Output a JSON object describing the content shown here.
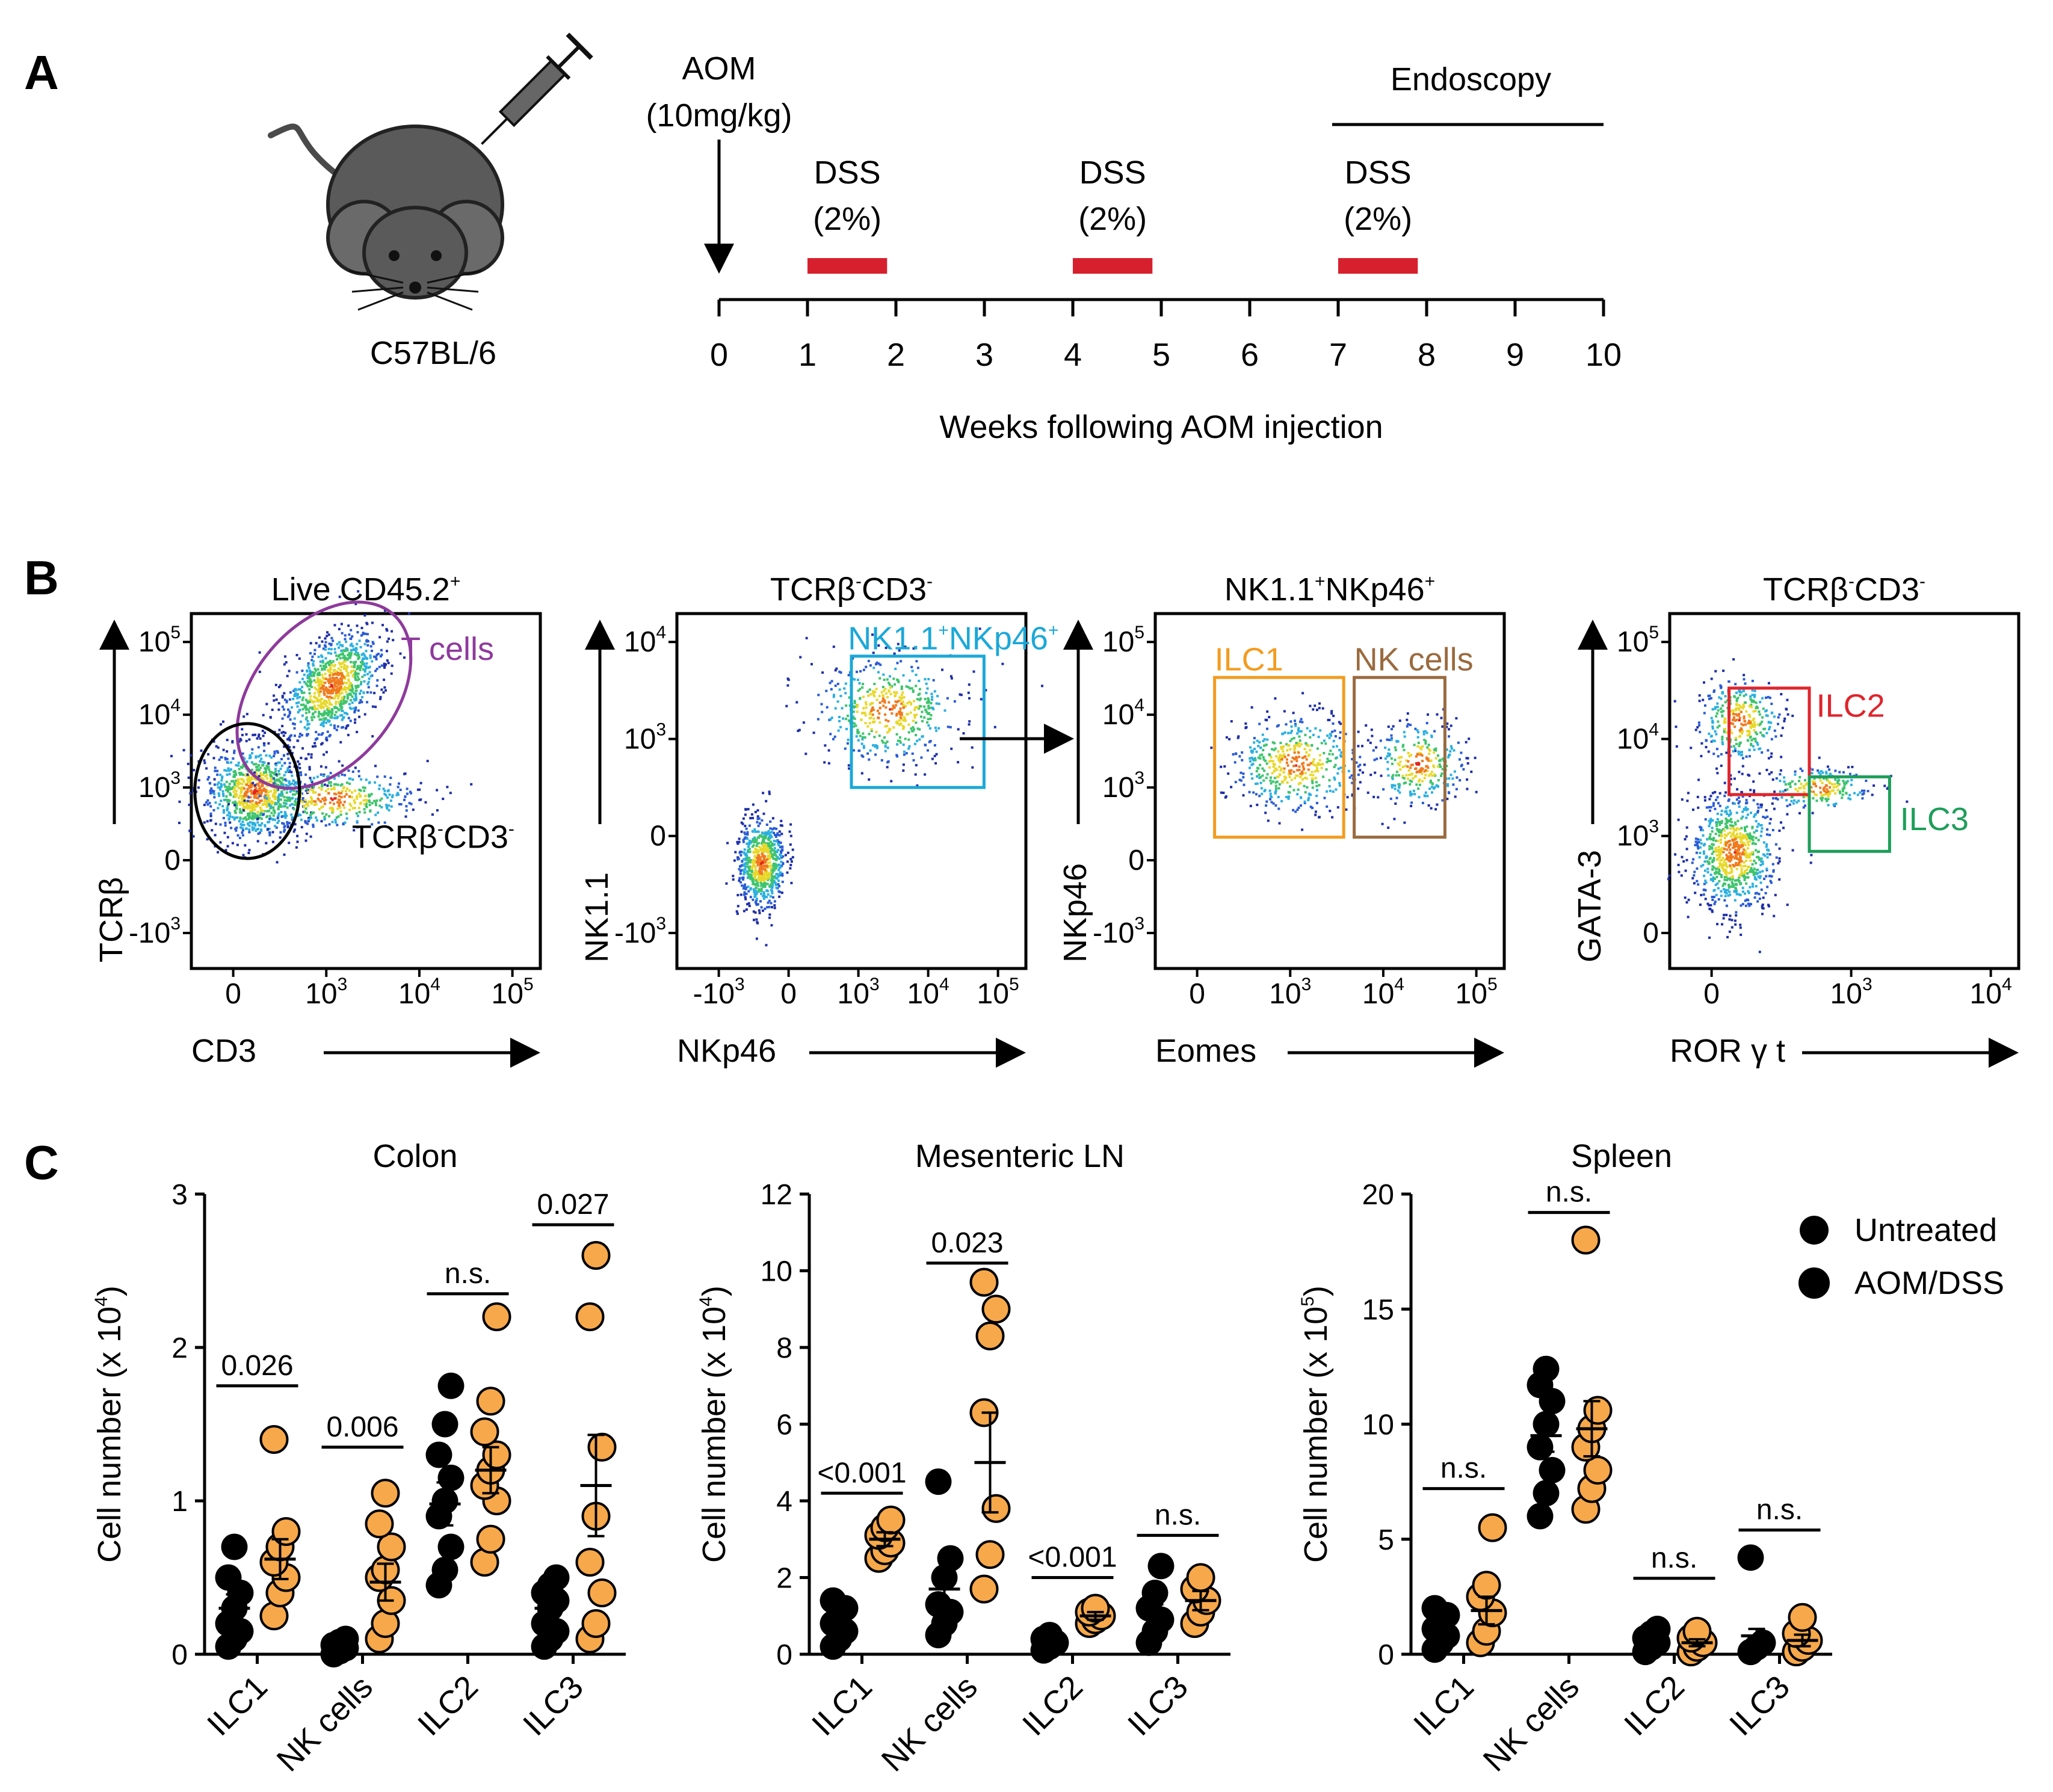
{
  "panel_labels": {
    "a": "A",
    "b": "B",
    "c": "C"
  },
  "colors": {
    "untreated": "#000000",
    "aom_dss": "#F7A84A",
    "dss_bar": "#D7202E",
    "tcells_gate": "#8E3A9C",
    "nk_gate": "#1BA8D8",
    "ilc1_gate": "#F39C1F",
    "nkcells_gate": "#9A6A3E",
    "ilc2_gate": "#E0242C",
    "ilc3_gate": "#1E9E5A"
  },
  "panel_a": {
    "mouse_strain": "C57BL/6",
    "aom_label": "AOM",
    "aom_dose": "(10mg/kg)",
    "endoscopy_label": "Endoscopy",
    "dss_label": "DSS",
    "dss_conc": "(2%)",
    "dss_periods": [
      [
        1,
        1.9
      ],
      [
        4,
        4.9
      ],
      [
        7,
        7.9
      ]
    ],
    "endoscopy_range": [
      7,
      10
    ],
    "aom_week": 0,
    "timeline_ticks": [
      "0",
      "1",
      "2",
      "3",
      "4",
      "5",
      "6",
      "7",
      "8",
      "9",
      "10"
    ],
    "timeline_axis_label": "Weeks following AOM injection"
  },
  "panel_b": {
    "plots": [
      {
        "title": "Live CD45.2",
        "title_sup": "+",
        "ylabel": "TCRβ",
        "xlabel": "CD3",
        "xticks": [
          "0",
          "10",
          "10",
          "10"
        ],
        "xtick_sups": [
          "",
          "3",
          "4",
          "5"
        ],
        "yticks": [
          "10",
          "10",
          "10",
          "0",
          "-10"
        ],
        "ytick_sups": [
          "5",
          "4",
          "3",
          "",
          "3"
        ],
        "gates": [
          {
            "label": "T cells",
            "color_key": "tcells_gate"
          },
          {
            "label": "TCRβ",
            "sup1": "-",
            "label2": "CD3",
            "sup2": "-",
            "color_key": "untreated"
          }
        ]
      },
      {
        "title": "TCRβ",
        "title_sup": "-",
        "title2": "CD3",
        "title2_sup": "-",
        "ylabel": "NK1.1",
        "xlabel": "NKp46",
        "xticks": [
          "-10",
          "0",
          "10",
          "10",
          "10"
        ],
        "xtick_sups": [
          "3",
          "",
          "3",
          "4",
          "5"
        ],
        "yticks": [
          "10",
          "10",
          "0",
          "-10"
        ],
        "ytick_sups": [
          "4",
          "3",
          "",
          "3"
        ],
        "gates": [
          {
            "label": "NK1.1",
            "sup1": "+",
            "label2": "NKp46",
            "sup2": "+",
            "color_key": "nk_gate"
          }
        ]
      },
      {
        "title": "NK1.1",
        "title_sup": "+",
        "title2": "NKp46",
        "title2_sup": "+",
        "ylabel": "NKp46",
        "xlabel": "Eomes",
        "xticks": [
          "0",
          "10",
          "10",
          "10"
        ],
        "xtick_sups": [
          "",
          "3",
          "4",
          "5"
        ],
        "yticks": [
          "10",
          "10",
          "10",
          "0",
          "-10"
        ],
        "ytick_sups": [
          "5",
          "4",
          "3",
          "",
          "3"
        ],
        "gates": [
          {
            "label": "ILC1",
            "color_key": "ilc1_gate"
          },
          {
            "label": "NK cells",
            "color_key": "nkcells_gate"
          }
        ]
      },
      {
        "title": "TCRβ",
        "title_sup": "-",
        "title2": "CD3",
        "title2_sup": "-",
        "ylabel": "GATA-3",
        "xlabel": "ROR γ t",
        "xticks": [
          "0",
          "10",
          "10"
        ],
        "xtick_sups": [
          "",
          "3",
          "4"
        ],
        "yticks": [
          "10",
          "10",
          "10",
          "0"
        ],
        "ytick_sups": [
          "5",
          "4",
          "3",
          ""
        ],
        "gates": [
          {
            "label": "ILC2",
            "color_key": "ilc2_gate"
          },
          {
            "label": "ILC3",
            "color_key": "ilc3_gate"
          }
        ]
      }
    ]
  },
  "legend": {
    "untreated": "Untreated",
    "aom_dss": "AOM/DSS"
  },
  "chart_data": [
    {
      "type": "scatter",
      "title": "Colon",
      "ylabel": "Cell number (x 10",
      "ylabel_exp": "4",
      "ylim": [
        0,
        3
      ],
      "yticks": [
        0,
        1,
        2,
        3
      ],
      "categories": [
        "ILC1",
        "NK cells",
        "ILC2",
        "ILC3"
      ],
      "series": [
        {
          "name": "Untreated",
          "points": [
            [
              0.05,
              0.1,
              0.15,
              0.2,
              0.3,
              0.4,
              0.5,
              0.7
            ],
            [
              0.0,
              0.02,
              0.04,
              0.06,
              0.08,
              0.1
            ],
            [
              0.45,
              0.55,
              0.7,
              0.9,
              1.0,
              1.15,
              1.3,
              1.5,
              1.75
            ],
            [
              0.05,
              0.1,
              0.15,
              0.2,
              0.3,
              0.35,
              0.4,
              0.45,
              0.5
            ]
          ],
          "mean": [
            0.3,
            0.05,
            0.98,
            0.3
          ],
          "sem": [
            0.09,
            0.015,
            0.14,
            0.06
          ]
        },
        {
          "name": "AOM/DSS",
          "points": [
            [
              0.25,
              0.4,
              0.5,
              0.6,
              0.7,
              0.8,
              1.4
            ],
            [
              0.1,
              0.2,
              0.35,
              0.5,
              0.55,
              0.7,
              0.85,
              1.05
            ],
            [
              0.6,
              0.75,
              1.0,
              1.1,
              1.2,
              1.3,
              1.45,
              1.65,
              2.2
            ],
            [
              0.1,
              0.2,
              0.4,
              0.6,
              0.9,
              1.35,
              2.2,
              2.6
            ]
          ],
          "mean": [
            0.62,
            0.47,
            1.2,
            1.1
          ],
          "sem": [
            0.13,
            0.12,
            0.15,
            0.33
          ]
        }
      ],
      "brackets": [
        {
          "category": 0,
          "y": 1.75,
          "label": "0.026"
        },
        {
          "category": 1,
          "y": 1.35,
          "label": "0.006"
        },
        {
          "category": 2,
          "y": 2.35,
          "label": "n.s."
        },
        {
          "category": 3,
          "y": 2.8,
          "label": "0.027"
        }
      ]
    },
    {
      "type": "scatter",
      "title": "Mesenteric LN",
      "ylabel": "Cell number (x 10",
      "ylabel_exp": "4",
      "ylim": [
        0,
        12
      ],
      "yticks": [
        0,
        2,
        4,
        6,
        8,
        10,
        12
      ],
      "categories": [
        "ILC1",
        "NK cells",
        "ILC2",
        "ILC3"
      ],
      "series": [
        {
          "name": "Untreated",
          "points": [
            [
              0.2,
              0.4,
              0.6,
              0.8,
              1.0,
              1.2,
              1.4
            ],
            [
              0.5,
              0.8,
              1.1,
              1.3,
              2.0,
              2.5,
              4.5
            ],
            [
              0.1,
              0.2,
              0.3,
              0.4,
              0.5
            ],
            [
              0.3,
              0.6,
              0.9,
              1.2,
              1.6,
              2.3
            ]
          ],
          "mean": [
            0.75,
            1.7,
            0.3,
            1.0
          ],
          "sem": [
            0.2,
            0.55,
            0.08,
            0.3
          ]
        },
        {
          "name": "AOM/DSS",
          "points": [
            [
              2.5,
              2.7,
              2.9,
              3.1,
              3.3,
              3.5
            ],
            [
              1.7,
              2.6,
              3.8,
              6.3,
              8.3,
              9.0,
              9.7
            ],
            [
              0.8,
              0.9,
              1.0,
              1.1,
              1.2
            ],
            [
              0.8,
              1.1,
              1.4,
              1.7,
              2.0
            ]
          ],
          "mean": [
            3.0,
            5.0,
            1.0,
            1.4
          ],
          "sem": [
            0.18,
            1.3,
            0.1,
            0.25
          ]
        }
      ],
      "brackets": [
        {
          "category": 0,
          "y": 4.2,
          "label": "<0.001"
        },
        {
          "category": 1,
          "y": 10.2,
          "label": "0.023"
        },
        {
          "category": 2,
          "y": 2.0,
          "label": "<0.001"
        },
        {
          "category": 3,
          "y": 3.1,
          "label": "n.s."
        }
      ]
    },
    {
      "type": "scatter",
      "title": "Spleen",
      "ylabel": "Cell number (x 10",
      "ylabel_exp": "5",
      "ylim": [
        0,
        20
      ],
      "yticks": [
        0,
        5,
        10,
        15,
        20
      ],
      "categories": [
        "ILC1",
        "NK cells",
        "ILC2",
        "ILC3"
      ],
      "series": [
        {
          "name": "Untreated",
          "points": [
            [
              0.2,
              0.5,
              0.8,
              1.1,
              1.4,
              1.7,
              2.0
            ],
            [
              6.0,
              7.0,
              8.0,
              9.0,
              10.0,
              11.0,
              11.7,
              12.4
            ],
            [
              0.1,
              0.3,
              0.5,
              0.7,
              0.9,
              1.1
            ],
            [
              0.1,
              0.3,
              0.5,
              4.2
            ]
          ],
          "mean": [
            1.0,
            9.5,
            0.6,
            0.8
          ],
          "sem": [
            0.25,
            0.7,
            0.15,
            0.3
          ]
        },
        {
          "name": "AOM/DSS",
          "points": [
            [
              0.5,
              1.0,
              1.8,
              2.5,
              3.0,
              5.5
            ],
            [
              6.3,
              7.2,
              8.0,
              9.0,
              9.8,
              10.6,
              18.0
            ],
            [
              0.1,
              0.3,
              0.5,
              0.7,
              1.0
            ],
            [
              0.1,
              0.3,
              0.6,
              0.9,
              1.6
            ]
          ],
          "mean": [
            1.9,
            9.8,
            0.5,
            0.6
          ],
          "sem": [
            0.6,
            1.2,
            0.15,
            0.25
          ]
        }
      ],
      "brackets": [
        {
          "category": 0,
          "y": 7.2,
          "label": "n.s."
        },
        {
          "category": 1,
          "y": 19.2,
          "label": "n.s."
        },
        {
          "category": 2,
          "y": 3.3,
          "label": "n.s."
        },
        {
          "category": 3,
          "y": 5.4,
          "label": "n.s."
        }
      ]
    }
  ]
}
